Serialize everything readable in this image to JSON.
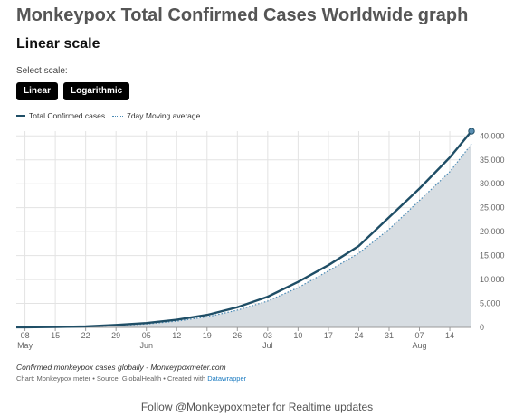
{
  "header": {
    "title": "Monkeypox Total Confirmed Cases Worldwide graph",
    "subtitle": "Linear scale",
    "select_label": "Select scale:"
  },
  "scale_buttons": [
    "Linear",
    "Logarithmic"
  ],
  "legend": {
    "series1": "Total Confirmed cases",
    "series2": "7day Moving average"
  },
  "colors": {
    "total_line": "#1f4e66",
    "moving_avg_line": "#4a8ab5",
    "area_fill": "#d7dde2",
    "button_bg": "#000000"
  },
  "chart_data": {
    "type": "line",
    "x_axis": {
      "ticks": [
        "08",
        "15",
        "22",
        "29",
        "05",
        "12",
        "19",
        "26",
        "03",
        "10",
        "17",
        "24",
        "31",
        "07",
        "14"
      ],
      "months": [
        "May",
        "Jun",
        "Jul",
        "Aug"
      ],
      "range": [
        "May 6",
        "Aug 19"
      ]
    },
    "y_axis": {
      "ticks": [
        "0",
        "5,000",
        "10,000",
        "15,000",
        "20,000",
        "25,000",
        "30,000",
        "35,000",
        "40,000"
      ],
      "range": [
        0,
        41000
      ],
      "position": "right"
    },
    "grid": true,
    "series": [
      {
        "name": "Total Confirmed cases",
        "x": [
          "May 6",
          "May 8",
          "May 15",
          "May 22",
          "May 29",
          "Jun 5",
          "Jun 12",
          "Jun 19",
          "Jun 26",
          "Jul 3",
          "Jul 10",
          "Jul 17",
          "Jul 24",
          "Jul 31",
          "Aug 7",
          "Aug 14",
          "Aug 19"
        ],
        "y": [
          5,
          20,
          80,
          200,
          500,
          900,
          1600,
          2600,
          4200,
          6400,
          9500,
          13000,
          17000,
          23000,
          29000,
          35500,
          41000
        ]
      },
      {
        "name": "7day Moving average",
        "x": [
          "May 6",
          "May 8",
          "May 15",
          "May 22",
          "May 29",
          "Jun 5",
          "Jun 12",
          "Jun 19",
          "Jun 26",
          "Jul 3",
          "Jul 10",
          "Jul 17",
          "Jul 24",
          "Jul 31",
          "Aug 7",
          "Aug 14",
          "Aug 19"
        ],
        "y": [
          3,
          10,
          50,
          130,
          350,
          700,
          1300,
          2200,
          3600,
          5500,
          8300,
          11800,
          15500,
          20500,
          26500,
          32500,
          38300
        ]
      }
    ]
  },
  "footer": {
    "notes": "Confirmed monkeypox cases globally - Monkeypoxmeter.com",
    "credits": "Chart: Monkeypox meter • Source: GlobalHealth • Created with",
    "credits_link": "Datawrapper",
    "follow": "Follow @Monkeypoxmeter for Realtime updates"
  }
}
